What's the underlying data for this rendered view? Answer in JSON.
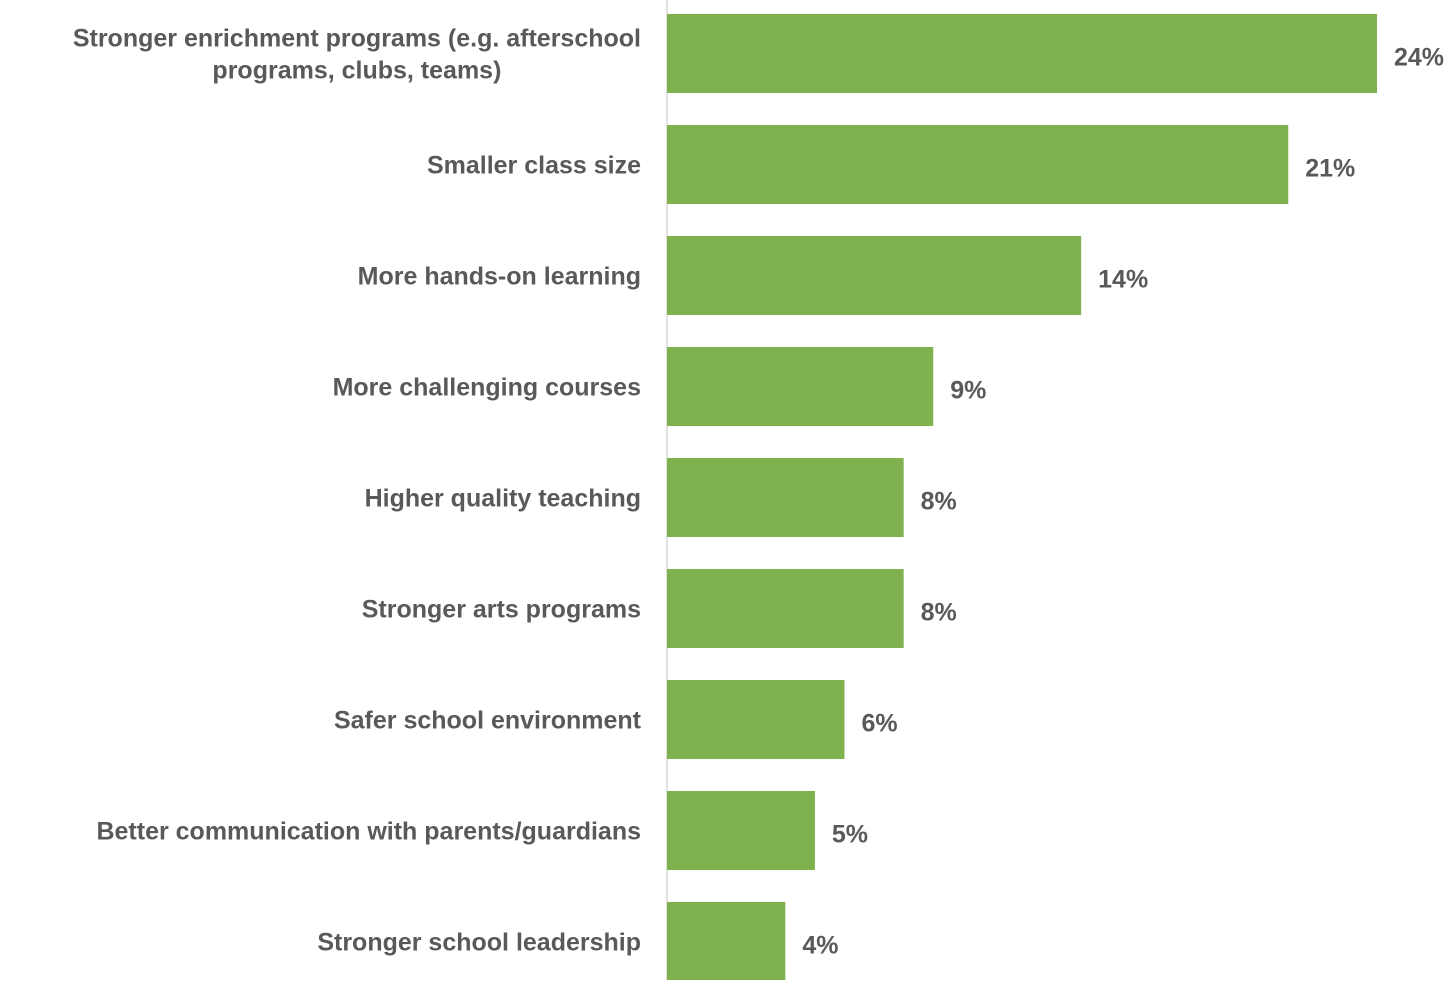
{
  "colors": {
    "bar": "#7fb14f",
    "text": "#595959",
    "axis": "#d9d9d9"
  },
  "chart_data": {
    "type": "bar",
    "orientation": "horizontal",
    "title": "",
    "xlabel": "",
    "ylabel": "",
    "xlim": [
      0,
      24
    ],
    "grid": false,
    "legend": "none",
    "value_format": "percent",
    "categories": [
      [
        "Stronger enrichment programs (e.g. afterschool",
        "programs, clubs, teams)"
      ],
      [
        "Smaller class size"
      ],
      [
        "More hands-on learning"
      ],
      [
        "More challenging courses"
      ],
      [
        "Higher quality teaching"
      ],
      [
        "Stronger arts programs"
      ],
      [
        "Safer school environment"
      ],
      [
        "Better communication with parents/guardians"
      ],
      [
        "Stronger school leadership"
      ]
    ],
    "values": [
      24,
      21,
      14,
      9,
      8,
      8,
      6,
      5,
      4
    ],
    "data_labels": [
      "24%",
      "21%",
      "14%",
      "9%",
      "8%",
      "8%",
      "6%",
      "5%",
      "4%"
    ]
  }
}
